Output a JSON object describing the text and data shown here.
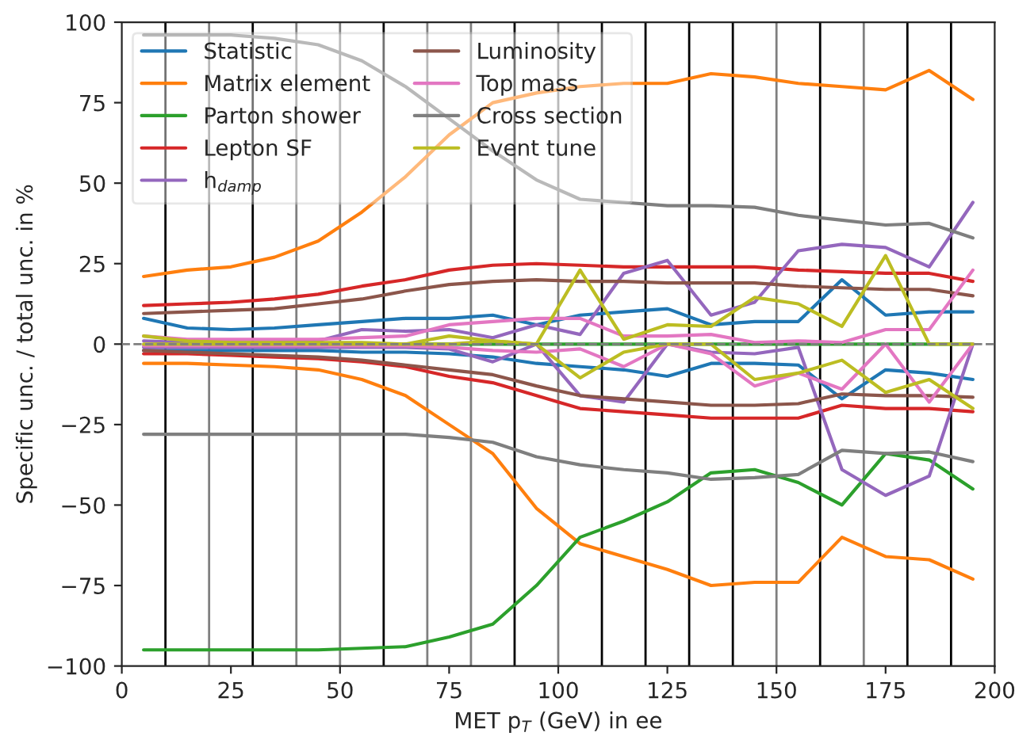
{
  "chart_data": {
    "type": "line",
    "xlabel": "MET p$_{T}$ (GeV) in ee",
    "ylabel": "Specific unc. / total unc. in %",
    "x": [
      5,
      15,
      25,
      35,
      45,
      55,
      65,
      75,
      85,
      95,
      105,
      115,
      125,
      135,
      145,
      155,
      165,
      175,
      185,
      195
    ],
    "xlim": [
      0,
      200
    ],
    "xticks": [
      0,
      25,
      50,
      75,
      100,
      125,
      150,
      175,
      200
    ],
    "ylim": [
      -100,
      100
    ],
    "yticks": [
      -100,
      -75,
      -50,
      -25,
      0,
      25,
      50,
      75,
      100
    ],
    "grid": false,
    "legend": "top left",
    "marker": "none",
    "line_style": "solid",
    "series": [
      {
        "name": "Statistic",
        "color": "#1f77b4",
        "values": [
          8,
          5,
          4.5,
          5,
          6,
          7,
          8,
          8,
          9,
          6,
          9,
          10,
          11,
          6,
          7,
          7,
          20,
          9,
          10,
          10
        ]
      },
      {
        "color": "#1f77b4",
        "values": [
          -2,
          -2,
          -2,
          -2,
          -2,
          -2.5,
          -2.5,
          -3,
          -4,
          -6,
          -7,
          -8,
          -10,
          -6,
          -6,
          -6.5,
          -17,
          -8,
          -9,
          -11
        ]
      },
      {
        "name": "Matrix element",
        "color": "#ff7f0e",
        "values": [
          21,
          23,
          24,
          27,
          32,
          41,
          52,
          65,
          75,
          78,
          80,
          81,
          81,
          84,
          83,
          81,
          80,
          79,
          85,
          76
        ]
      },
      {
        "color": "#ff7f0e",
        "values": [
          -6,
          -6,
          -6.5,
          -7,
          -8,
          -11,
          -16,
          -25,
          -34,
          -51,
          -62,
          -66,
          -70,
          -75,
          -74,
          -74,
          -60,
          -66,
          -67,
          -73
        ]
      },
      {
        "name": "Parton shower",
        "color": "#2ca02c",
        "values": [
          null,
          null,
          null,
          null,
          null,
          null,
          0,
          0,
          0,
          0,
          0,
          0,
          0,
          0,
          0,
          0,
          0,
          0,
          0,
          0
        ]
      },
      {
        "color": "#2ca02c",
        "values": [
          -95,
          -95,
          -95,
          -95,
          -95,
          -94.5,
          -94,
          -91,
          -87,
          -75,
          -60,
          -55,
          -49,
          -40,
          -39,
          -43,
          -50,
          -34,
          -36,
          -45
        ]
      },
      {
        "name": "Lepton SF",
        "color": "#d62728",
        "values": [
          12,
          12.5,
          13,
          14,
          15.5,
          18,
          20,
          23,
          24.5,
          25,
          24.5,
          24,
          24,
          24,
          24,
          23,
          22.5,
          22,
          22,
          19.5
        ]
      },
      {
        "color": "#d62728",
        "values": [
          -3,
          -3,
          -3.5,
          -4,
          -4.5,
          -5.5,
          -7,
          -10,
          -12,
          -16,
          -20,
          -21,
          -22,
          -23,
          -23,
          -23,
          -19,
          -20,
          -20,
          -21
        ]
      },
      {
        "name": "h$_{damp}$",
        "color": "#9467bd",
        "values": [
          1,
          0.5,
          0.5,
          0.5,
          1,
          4.5,
          4,
          4.5,
          2,
          6,
          3,
          22,
          26,
          9,
          13,
          29,
          31,
          30,
          24,
          44
        ]
      },
      {
        "color": "#9467bd",
        "values": [
          -1,
          -1,
          -1,
          -1,
          -1,
          -1,
          -1,
          -1.5,
          -5.5,
          0,
          -16,
          -18,
          0,
          -2.5,
          -3,
          -1,
          -39,
          -47,
          -41,
          0
        ]
      },
      {
        "name": "Luminosity",
        "color": "#8c564b",
        "values": [
          9.5,
          10,
          10.5,
          11,
          12.5,
          14,
          16.5,
          18.5,
          19.5,
          20,
          19.5,
          19.5,
          19,
          19,
          19,
          18,
          17.5,
          17,
          17,
          15
        ]
      },
      {
        "color": "#8c564b",
        "values": [
          -2,
          -2.5,
          -3,
          -3.5,
          -4,
          -5,
          -6.5,
          -8,
          -9.5,
          -13,
          -16,
          -17,
          -18,
          -19,
          -19,
          -18.5,
          -15.5,
          -16,
          -16,
          -16.5
        ]
      },
      {
        "name": "Top mass",
        "color": "#e377c2",
        "values": [
          2.5,
          1.5,
          1.5,
          1.5,
          1.5,
          2,
          2.5,
          6,
          7,
          8,
          8,
          2.5,
          2.5,
          3,
          0.5,
          1,
          0.5,
          4.5,
          4.5,
          23
        ]
      },
      {
        "color": "#e377c2",
        "values": [
          -0.5,
          -0.5,
          -0.5,
          -0.5,
          -0.5,
          -0.5,
          -0.5,
          -1,
          -2,
          -2.5,
          -1.5,
          -7,
          0,
          -3,
          -13,
          -9,
          -14,
          0,
          -18,
          0
        ]
      },
      {
        "name": "Cross section",
        "color": "#7f7f7f",
        "values": [
          96,
          96,
          96,
          95,
          93,
          88,
          80,
          70,
          60,
          51,
          45,
          44,
          43,
          43,
          42.5,
          40,
          38.5,
          37,
          37.5,
          33
        ]
      },
      {
        "color": "#7f7f7f",
        "values": [
          -28,
          -28,
          -28,
          -28,
          -28,
          -28,
          -28,
          -29,
          -30.5,
          -35,
          -37.5,
          -39,
          -40,
          -42,
          -41.5,
          -40.5,
          -33,
          -34,
          -33.5,
          -36.5
        ]
      },
      {
        "name": "Event tune",
        "color": "#bcbd22",
        "values": [
          2.5,
          1,
          0.5,
          0.5,
          0.5,
          0.5,
          0,
          2.5,
          1,
          0,
          23,
          1.5,
          6,
          5.5,
          14.5,
          12.5,
          5.5,
          27.5,
          0,
          0
        ]
      },
      {
        "color": "#bcbd22",
        "values": [
          0,
          0,
          0,
          0,
          0,
          0,
          0,
          0,
          1,
          0,
          -10.5,
          -2.5,
          0,
          0,
          -11,
          -9,
          -5,
          -15,
          -11,
          -20
        ]
      }
    ],
    "ref_lines": [
      {
        "axis": "y",
        "value": 0,
        "color": "#7f7f7f",
        "line_style": "dashed"
      },
      {
        "axis": "x",
        "value": 10,
        "color": "#000000"
      },
      {
        "axis": "x",
        "value": 20,
        "color": "#7f7f7f"
      },
      {
        "axis": "x",
        "value": 30,
        "color": "#000000"
      },
      {
        "axis": "x",
        "value": 40,
        "color": "#7f7f7f"
      },
      {
        "axis": "x",
        "value": 50,
        "color": "#7f7f7f"
      },
      {
        "axis": "x",
        "value": 60,
        "color": "#000000"
      },
      {
        "axis": "x",
        "value": 70,
        "color": "#7f7f7f"
      },
      {
        "axis": "x",
        "value": 80,
        "color": "#7f7f7f"
      },
      {
        "axis": "x",
        "value": 90,
        "color": "#000000"
      },
      {
        "axis": "x",
        "value": 100,
        "color": "#7f7f7f"
      },
      {
        "axis": "x",
        "value": 110,
        "color": "#000000"
      },
      {
        "axis": "x",
        "value": 120,
        "color": "#000000"
      },
      {
        "axis": "x",
        "value": 130,
        "color": "#000000"
      },
      {
        "axis": "x",
        "value": 140,
        "color": "#000000"
      },
      {
        "axis": "x",
        "value": 150,
        "color": "#7f7f7f"
      },
      {
        "axis": "x",
        "value": 160,
        "color": "#000000"
      },
      {
        "axis": "x",
        "value": 170,
        "color": "#7f7f7f"
      },
      {
        "axis": "x",
        "value": 180,
        "color": "#000000"
      },
      {
        "axis": "x",
        "value": 190,
        "color": "#000000"
      }
    ]
  }
}
